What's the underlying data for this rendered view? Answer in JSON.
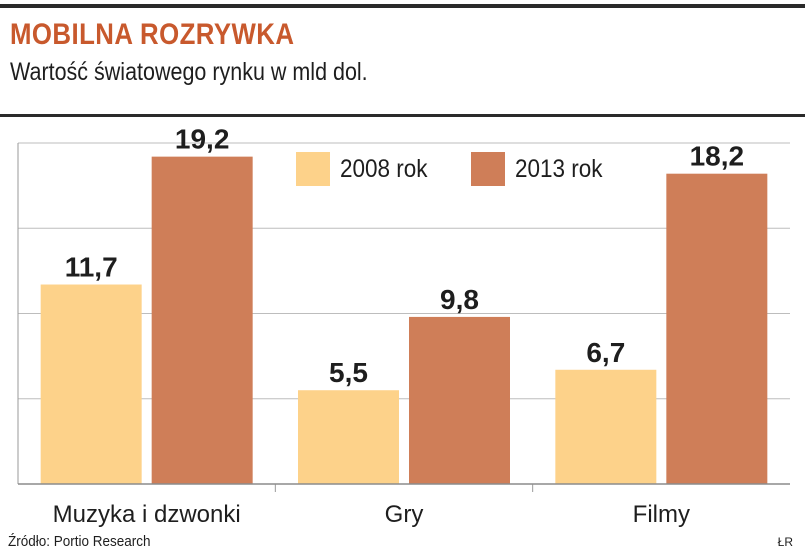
{
  "header": {
    "title": "MOBILNA ROZRYWKA",
    "subtitle": "Wartość światowego rynku w mld dol."
  },
  "footer": {
    "source": "Źródło: Portio Research",
    "credit": "ŁR"
  },
  "chart_data": {
    "type": "bar",
    "title": "MOBILNA ROZRYWKA",
    "subtitle": "Wartość światowego rynku w mld dol.",
    "categories": [
      "Muzyka i dzwonki",
      "Gry",
      "Filmy"
    ],
    "series": [
      {
        "name": "2008 rok",
        "values": [
          11.7,
          5.5,
          6.7
        ],
        "color": "#fdd28a",
        "labels": [
          "11,7",
          "5,5",
          "6,7"
        ]
      },
      {
        "name": "2013 rok",
        "values": [
          19.2,
          9.8,
          18.2
        ],
        "color": "#cf7e58",
        "labels": [
          "19,2",
          "9,8",
          "18,2"
        ]
      }
    ],
    "ylim": [
      0,
      20
    ],
    "grid": true,
    "legend": "top-center"
  }
}
